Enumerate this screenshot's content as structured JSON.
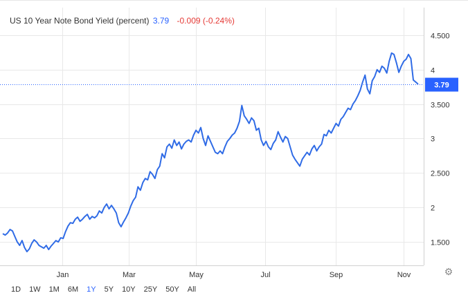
{
  "header": {
    "title": "US 10 Year Note Bond Yield (percent)",
    "last_value": "3.79",
    "change": "-0.009 (-0.24%)"
  },
  "range_buttons": [
    "1D",
    "1W",
    "1M",
    "6M",
    "1Y",
    "5Y",
    "10Y",
    "25Y",
    "50Y",
    "All"
  ],
  "active_range": "1Y",
  "colors": {
    "line": "#2f6be6",
    "last_badge": "#2962ff",
    "change_negative": "#e53935",
    "grid": "#e8e8e8"
  },
  "icons": {
    "settings": "gear-icon"
  },
  "chart_data": {
    "type": "line",
    "title": "US 10 Year Note Bond Yield (percent)",
    "last_label": "3.79",
    "x_tick_labels": [
      "Jan",
      "Mar",
      "May",
      "Jul",
      "Sep",
      "Nov"
    ],
    "y_tick_labels": [
      "1.500",
      "2",
      "2.500",
      "3",
      "3.500",
      "4",
      "4.500"
    ],
    "y_ticks": [
      1.5,
      2,
      2.5,
      3,
      3.5,
      4,
      4.5
    ],
    "ylim": [
      1.0,
      5.0
    ],
    "grid": true,
    "series": [
      {
        "values": [
          1.62,
          1.6,
          1.63,
          1.68,
          1.66,
          1.58,
          1.5,
          1.45,
          1.52,
          1.42,
          1.36,
          1.4,
          1.48,
          1.53,
          1.5,
          1.45,
          1.43,
          1.41,
          1.45,
          1.39,
          1.44,
          1.48,
          1.52,
          1.5,
          1.56,
          1.55,
          1.65,
          1.73,
          1.78,
          1.77,
          1.83,
          1.86,
          1.8,
          1.83,
          1.87,
          1.9,
          1.83,
          1.87,
          1.85,
          1.88,
          1.95,
          1.92,
          2.0,
          2.05,
          1.98,
          2.03,
          1.98,
          1.92,
          1.78,
          1.72,
          1.79,
          1.85,
          1.92,
          2.02,
          2.1,
          2.15,
          2.3,
          2.25,
          2.36,
          2.42,
          2.4,
          2.52,
          2.48,
          2.42,
          2.55,
          2.6,
          2.78,
          2.72,
          2.88,
          2.92,
          2.86,
          2.98,
          2.9,
          2.95,
          2.85,
          2.92,
          2.96,
          2.98,
          2.95,
          3.05,
          3.12,
          3.08,
          3.16,
          3.0,
          2.9,
          3.04,
          2.96,
          2.88,
          2.8,
          2.78,
          2.82,
          2.78,
          2.88,
          2.96,
          3.0,
          3.05,
          3.08,
          3.15,
          3.25,
          3.48,
          3.33,
          3.28,
          3.22,
          3.3,
          3.26,
          3.12,
          3.15,
          2.98,
          2.9,
          2.96,
          2.88,
          2.84,
          2.93,
          2.98,
          3.1,
          3.02,
          2.95,
          3.03,
          3.0,
          2.88,
          2.76,
          2.7,
          2.65,
          2.6,
          2.7,
          2.75,
          2.8,
          2.76,
          2.85,
          2.9,
          2.82,
          2.88,
          2.92,
          3.06,
          3.04,
          3.12,
          3.08,
          3.15,
          3.22,
          3.18,
          3.28,
          3.32,
          3.38,
          3.44,
          3.42,
          3.5,
          3.55,
          3.62,
          3.7,
          3.82,
          3.92,
          3.72,
          3.65,
          3.84,
          3.9,
          4.0,
          3.96,
          4.05,
          4.02,
          3.95,
          4.12,
          4.24,
          4.22,
          4.1,
          3.96,
          4.05,
          4.12,
          4.15,
          4.22,
          4.16,
          3.85,
          3.82,
          3.79
        ]
      }
    ]
  }
}
